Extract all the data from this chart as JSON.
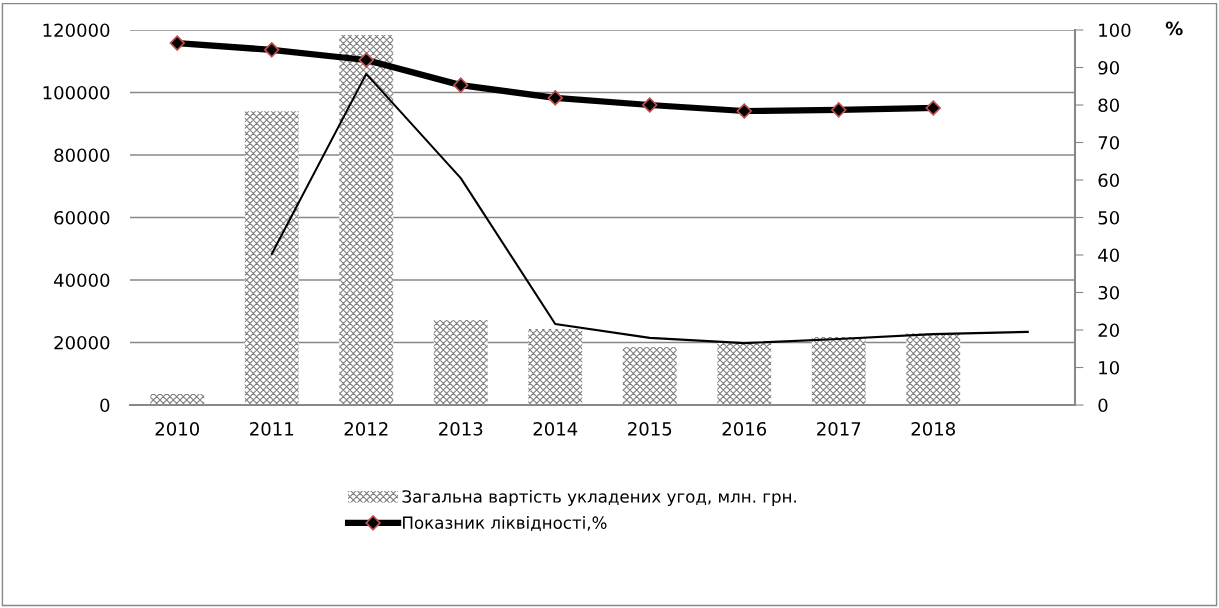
{
  "chart_data": {
    "type": "bar",
    "categories": [
      "2010",
      "2011",
      "2012",
      "2013",
      "2014",
      "2015",
      "2016",
      "2017",
      "2018",
      null
    ],
    "series": [
      {
        "name": "Загальна вартість укладених угод, млн. грн.",
        "color": "#7f7f7f",
        "values": [
          3500,
          94000,
          118400,
          27200,
          24300,
          18600,
          20200,
          21800,
          23000,
          null
        ]
      },
      {
        "name": "Показник ліквідності,%",
        "type": "line",
        "axis": "y2",
        "color": "#000000",
        "marker": "diamond",
        "values": [
          96.5,
          94.7,
          92,
          85.3,
          81.9,
          80,
          78.4,
          78.7,
          79.2,
          null
        ]
      },
      {
        "type": "line",
        "axis": "y2",
        "color": "#000000",
        "values": [
          null,
          40.3,
          88.3,
          60.5,
          21.6,
          17.9,
          16.5,
          17.6,
          18.9,
          19.5
        ]
      }
    ],
    "ylim": [
      0,
      120000
    ],
    "yticks": [
      0,
      20000,
      40000,
      60000,
      80000,
      100000,
      120000
    ],
    "y2lim": [
      0,
      100
    ],
    "y2ticks": [
      0,
      10,
      20,
      30,
      40,
      50,
      60,
      70,
      80,
      90,
      100
    ],
    "y2label": "%",
    "grid": "y",
    "legend": "bottom"
  }
}
